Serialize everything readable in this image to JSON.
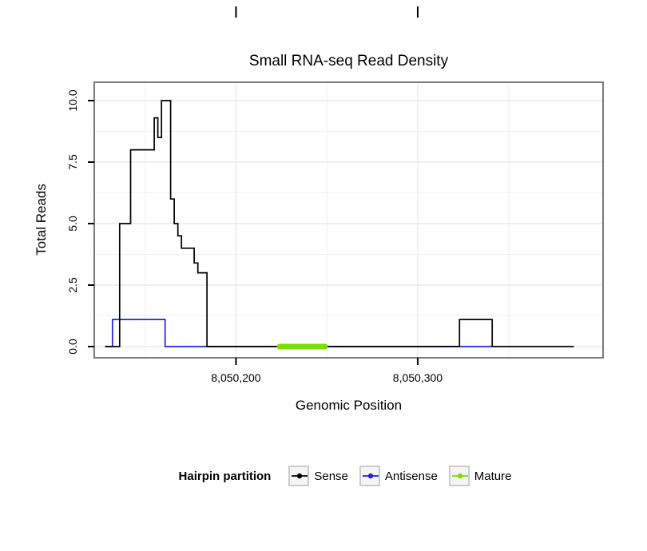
{
  "chart_data": {
    "type": "line",
    "title": "Small RNA-seq Read Density",
    "xlabel": "Genomic Position",
    "ylabel": "Total Reads",
    "x_domain": [
      8050122,
      8050402
    ],
    "y_domain": [
      0,
      10
    ],
    "x_ticks": [
      {
        "value": 8050200,
        "label": "8,050,200"
      },
      {
        "value": 8050300,
        "label": "8,050,300"
      }
    ],
    "x_minor": [
      8050150,
      8050250,
      8050350
    ],
    "y_ticks": [
      {
        "value": 0,
        "label": "0.0"
      },
      {
        "value": 2.5,
        "label": "2.5"
      },
      {
        "value": 5,
        "label": "5.0"
      },
      {
        "value": 7.5,
        "label": "7.5"
      },
      {
        "value": 10,
        "label": "10.0"
      }
    ],
    "y_minor": [
      1.25,
      3.75,
      6.25,
      8.75
    ],
    "grid": {
      "major_color": "#e2e2e2",
      "minor_color": "#f1f1f1"
    },
    "panel_border_color": "#7a7a7a",
    "series": [
      {
        "name": "Sense",
        "color": "#000000",
        "width": 1.7,
        "z": 1,
        "points": [
          [
            8050128,
            0
          ],
          [
            8050136,
            0
          ],
          [
            8050136,
            5
          ],
          [
            8050142,
            5
          ],
          [
            8050142,
            8
          ],
          [
            8050155,
            8
          ],
          [
            8050155,
            9.3
          ],
          [
            8050157,
            9.3
          ],
          [
            8050157,
            8.5
          ],
          [
            8050159,
            8.5
          ],
          [
            8050159,
            10
          ],
          [
            8050164,
            10
          ],
          [
            8050164,
            6
          ],
          [
            8050166,
            6
          ],
          [
            8050166,
            5
          ],
          [
            8050168,
            5
          ],
          [
            8050168,
            4.5
          ],
          [
            8050170,
            4.5
          ],
          [
            8050170,
            4
          ],
          [
            8050177,
            4
          ],
          [
            8050177,
            3.4
          ],
          [
            8050179,
            3.4
          ],
          [
            8050179,
            3
          ],
          [
            8050184,
            3
          ],
          [
            8050184,
            0
          ],
          [
            8050323,
            0
          ],
          [
            8050323,
            1.1
          ],
          [
            8050341,
            1.1
          ],
          [
            8050341,
            0
          ],
          [
            8050386,
            0
          ]
        ]
      },
      {
        "name": "Antisense",
        "color": "#2222dd",
        "width": 1.7,
        "z": 0,
        "points": [
          [
            8050128,
            0
          ],
          [
            8050132,
            0
          ],
          [
            8050132,
            1.1
          ],
          [
            8050161,
            1.1
          ],
          [
            8050161,
            0
          ],
          [
            8050341,
            0
          ]
        ]
      },
      {
        "name": "Mature",
        "color": "#7cdd00",
        "width": 7,
        "linecap": "round",
        "z": 2,
        "points": [
          [
            8050224,
            0
          ],
          [
            8050249,
            0
          ]
        ]
      }
    ],
    "legend": {
      "title": "Hairpin partition",
      "entries": [
        {
          "label": "Sense",
          "color": "#000000"
        },
        {
          "label": "Antisense",
          "color": "#2222dd"
        },
        {
          "label": "Mature",
          "color": "#7cdd00"
        }
      ]
    }
  }
}
